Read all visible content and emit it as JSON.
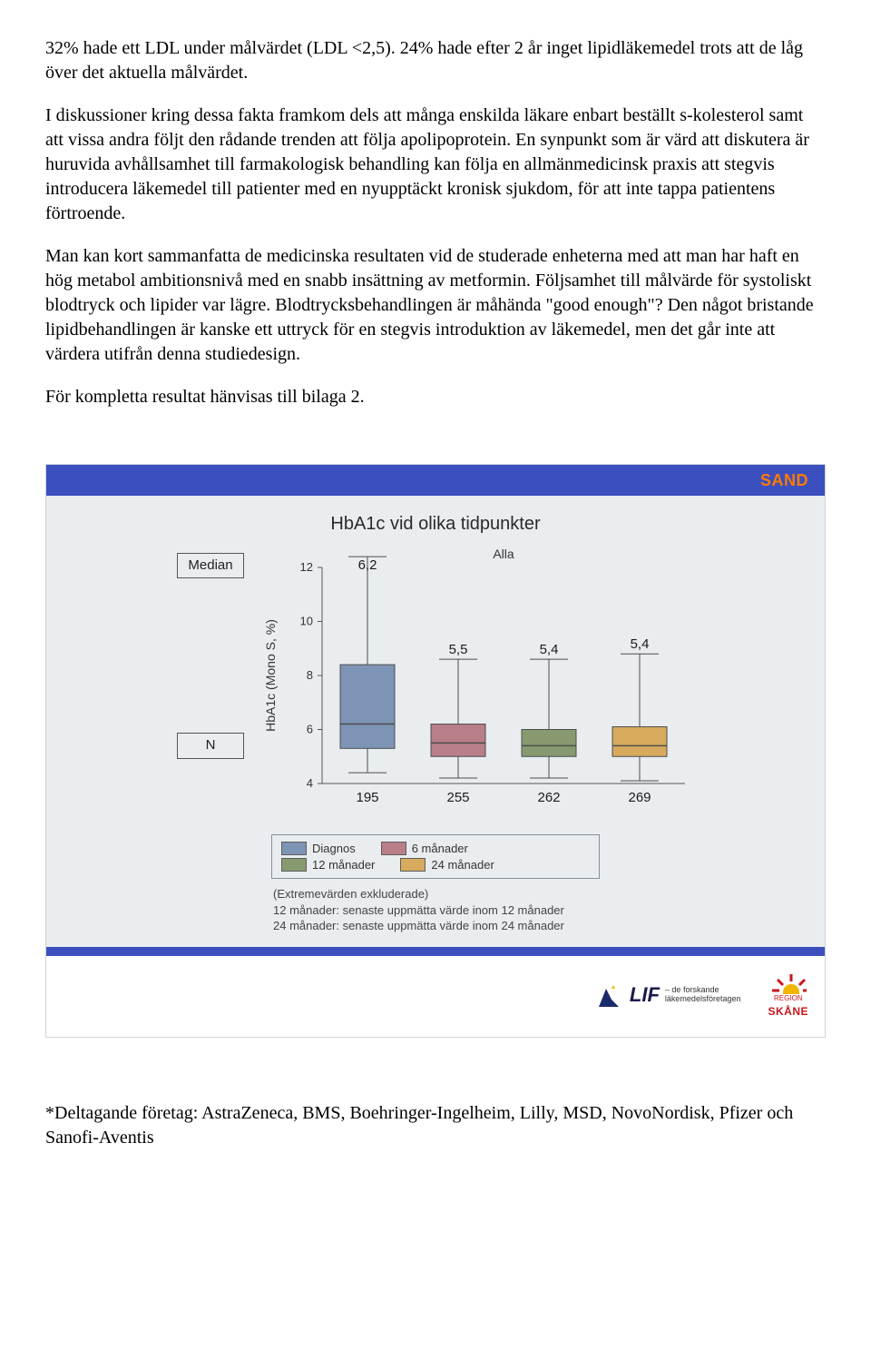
{
  "paragraphs": {
    "p1": "32% hade ett LDL under målvärdet (LDL <2,5). 24% hade efter 2 år inget lipidläkemedel trots att de låg över det aktuella målvärdet.",
    "p2": "I diskussioner kring dessa fakta framkom dels att många enskilda läkare enbart beställt s-kolesterol samt att vissa andra följt den rådande trenden att följa apolipoprotein. En synpunkt som är värd att diskutera är huruvida avhållsamhet till farmakologisk behandling kan följa en allmänmedicinsk praxis att stegvis introducera läkemedel till patienter med en nyupptäckt kronisk sjukdom, för att inte tappa patientens förtroende.",
    "p3": "Man kan kort sammanfatta de medicinska resultaten vid de studerade enheterna med att man har haft en hög metabol ambitionsnivå med en snabb insättning av metformin. Följsamhet till målvärde för systoliskt blodtryck och lipider var lägre. Blodtrycksbehandlingen är måhända \"good enough\"? Den något bristande lipidbehandlingen är kanske ett uttryck för en stegvis introduktion av läkemedel, men det går inte att värdera utifrån denna studiedesign.",
    "p4": "För kompletta resultat hänvisas till bilaga 2."
  },
  "slide": {
    "brand": "SAND",
    "title": "HbA1c vid olika tidpunkter",
    "side": {
      "median": "Median",
      "n": "N"
    },
    "medians_text": [
      "6,2",
      "5,5",
      "5,4",
      "5,4"
    ],
    "n_values": [
      "195",
      "255",
      "262",
      "269"
    ],
    "y": {
      "label": "HbA1c (Mono S, %)",
      "ticks": [
        4,
        6,
        8,
        10,
        12
      ],
      "min": 4,
      "max": 12
    },
    "x": {
      "label": "Alla"
    },
    "boxes": [
      {
        "name": "Diagnos",
        "fill": "#7e94b5",
        "q1": 5.3,
        "med": 6.2,
        "q3": 8.4,
        "lo": 4.4,
        "hi": 12.4
      },
      {
        "name": "6 månader",
        "fill": "#b97f88",
        "q1": 5.0,
        "med": 5.5,
        "q3": 6.2,
        "lo": 4.2,
        "hi": 8.6
      },
      {
        "name": "12 månader",
        "fill": "#879a6f",
        "q1": 5.0,
        "med": 5.4,
        "q3": 6.0,
        "lo": 4.2,
        "hi": 8.6
      },
      {
        "name": "24 månader",
        "fill": "#d7aa5e",
        "q1": 5.0,
        "med": 5.4,
        "q3": 6.1,
        "lo": 4.1,
        "hi": 8.8
      }
    ],
    "legend": [
      {
        "label": "Diagnos",
        "fill": "#7e94b5"
      },
      {
        "label": "6 månader",
        "fill": "#b97f88"
      },
      {
        "label": "12 månader",
        "fill": "#879a6f"
      },
      {
        "label": "24 månader",
        "fill": "#d7aa5e"
      }
    ],
    "notes": {
      "n1": "(Extremevärden exkluderade)",
      "n2": "12 månader: senaste uppmätta värde inom 12 månader",
      "n3": "24 månader: senaste uppmätta värde inom 24 månader"
    },
    "logos": {
      "lif_name": "LIF",
      "lif_sub1": "– de forskande",
      "lif_sub2": "läkemedelsföretagen",
      "skane_top": "REGION",
      "skane": "SKÅNE"
    }
  },
  "footnote": "*Deltagande företag: AstraZeneca, BMS, Boehringer-Ingelheim, Lilly, MSD, NovoNordisk, Pfizer och Sanofi-Aventis"
}
